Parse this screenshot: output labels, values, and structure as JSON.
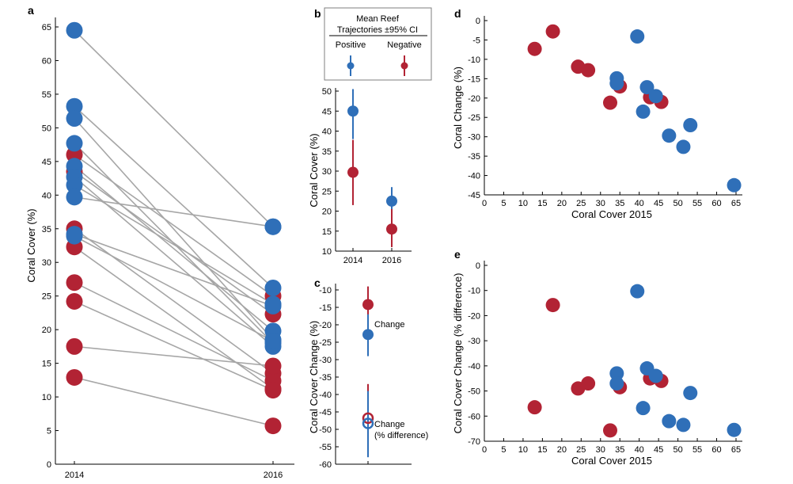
{
  "colors": {
    "positive": "#2f6fb8",
    "negative": "#b22334",
    "line": "#a6a6a6",
    "axis": "#000000"
  },
  "chart_data": [
    {
      "id": "a",
      "panel_label": "a",
      "type": "slope",
      "title": "",
      "xlabel": "",
      "ylabel": "Coral Cover (%)",
      "categories": [
        "2014",
        "2016"
      ],
      "ylim": [
        0,
        65
      ],
      "yticks": [
        0,
        5,
        10,
        15,
        20,
        25,
        30,
        35,
        40,
        45,
        50,
        55,
        60,
        65
      ],
      "pairs": [
        {
          "group": "positive",
          "y2014": 64.5,
          "y2016": 35.3
        },
        {
          "group": "positive",
          "y2014": 53.2,
          "y2016": 26.2
        },
        {
          "group": "positive",
          "y2014": 51.4,
          "y2016": 18.5
        },
        {
          "group": "positive",
          "y2014": 47.7,
          "y2016": 18.0
        },
        {
          "group": "negative",
          "y2014": 46.0,
          "y2016": 25.0
        },
        {
          "group": "positive",
          "y2014": 44.3,
          "y2016": 19.8
        },
        {
          "group": "negative",
          "y2014": 43.5,
          "y2016": 22.3
        },
        {
          "group": "positive",
          "y2014": 42.7,
          "y2016": 17.5
        },
        {
          "group": "positive",
          "y2014": 41.5,
          "y2016": 23.8
        },
        {
          "group": "positive",
          "y2014": 39.7,
          "y2016": 35.3
        },
        {
          "group": "negative",
          "y2014": 35.0,
          "y2016": 13.5
        },
        {
          "group": "positive",
          "y2014": 34.2,
          "y2016": 23.5
        },
        {
          "group": "positive",
          "y2014": 33.9,
          "y2016": 18.3
        },
        {
          "group": "negative",
          "y2014": 32.3,
          "y2016": 11.2
        },
        {
          "group": "negative",
          "y2014": 27.0,
          "y2016": 12.4
        },
        {
          "group": "negative",
          "y2014": 24.2,
          "y2016": 11.0
        },
        {
          "group": "negative",
          "y2014": 17.5,
          "y2016": 14.6
        },
        {
          "group": "negative",
          "y2014": 12.9,
          "y2016": 5.7
        }
      ]
    },
    {
      "id": "legend",
      "panel_label": "b",
      "type": "legend",
      "title_line1": "Mean Reef",
      "title_line2": "Trajectories ±95% CI",
      "entries": [
        {
          "group": "positive",
          "label": "Positive"
        },
        {
          "group": "negative",
          "label": "Negative"
        }
      ]
    },
    {
      "id": "b",
      "type": "errorbar",
      "xlabel": "",
      "ylabel": "Coral Cover  (%)",
      "categories": [
        "2014",
        "2016"
      ],
      "ylim": [
        10,
        50
      ],
      "yticks": [
        10,
        15,
        20,
        25,
        30,
        35,
        40,
        45,
        50
      ],
      "series": [
        {
          "group": "positive",
          "mean": [
            45.0,
            22.5
          ],
          "lower": [
            38.0,
            18.5
          ],
          "upper": [
            50.5,
            26.0
          ]
        },
        {
          "group": "negative",
          "mean": [
            29.7,
            15.5
          ],
          "lower": [
            21.5,
            11.0
          ],
          "upper": [
            37.8,
            20.5
          ]
        }
      ]
    },
    {
      "id": "c",
      "panel_label": "c",
      "type": "errorbar",
      "xlabel": "",
      "ylabel": "Coral Cover Change (%)",
      "ylim": [
        -60,
        -10
      ],
      "yticks": [
        -60,
        -55,
        -50,
        -45,
        -40,
        -35,
        -30,
        -25,
        -20,
        -15,
        -10
      ],
      "annotations": {
        "change": "Change",
        "pct_line1": "Change",
        "pct_line2": "(% difference)"
      },
      "points": [
        {
          "group": "negative",
          "label": "Change",
          "filled": true,
          "mean": -14.2,
          "lower": -19.5,
          "upper": -9.0
        },
        {
          "group": "positive",
          "label": "Change",
          "filled": true,
          "mean": -22.8,
          "lower": -29.0,
          "upper": -17.0
        },
        {
          "group": "negative",
          "label": "Change (% difference)",
          "filled": false,
          "mean": -46.8,
          "lower": -56.5,
          "upper": -37.0
        },
        {
          "group": "positive",
          "label": "Change (% difference)",
          "filled": false,
          "mean": -48.3,
          "lower": -58.0,
          "upper": -39.0
        }
      ]
    },
    {
      "id": "d",
      "panel_label": "d",
      "type": "scatter",
      "xlabel": "Coral Cover 2015",
      "ylabel": "Coral Change (%)",
      "xlim": [
        0,
        65
      ],
      "ylim": [
        -45,
        0
      ],
      "xticks": [
        0,
        5,
        10,
        15,
        20,
        25,
        30,
        35,
        40,
        45,
        50,
        55,
        60,
        65
      ],
      "yticks": [
        -45,
        -40,
        -35,
        -30,
        -25,
        -20,
        -15,
        -10,
        -5,
        0
      ],
      "points": [
        {
          "group": "negative",
          "x": 13.0,
          "y": -7.3
        },
        {
          "group": "negative",
          "x": 17.7,
          "y": -2.8
        },
        {
          "group": "negative",
          "x": 24.2,
          "y": -11.9
        },
        {
          "group": "negative",
          "x": 26.8,
          "y": -12.8
        },
        {
          "group": "negative",
          "x": 32.5,
          "y": -21.2
        },
        {
          "group": "negative",
          "x": 35.0,
          "y": -17.0
        },
        {
          "group": "negative",
          "x": 42.8,
          "y": -19.8
        },
        {
          "group": "negative",
          "x": 45.7,
          "y": -21.0
        },
        {
          "group": "positive",
          "x": 34.2,
          "y": -14.9
        },
        {
          "group": "positive",
          "x": 34.2,
          "y": -16.2
        },
        {
          "group": "positive",
          "x": 39.5,
          "y": -4.1
        },
        {
          "group": "positive",
          "x": 41.0,
          "y": -23.5
        },
        {
          "group": "positive",
          "x": 42.0,
          "y": -17.2
        },
        {
          "group": "positive",
          "x": 44.3,
          "y": -19.5
        },
        {
          "group": "positive",
          "x": 47.7,
          "y": -29.7
        },
        {
          "group": "positive",
          "x": 51.4,
          "y": -32.6
        },
        {
          "group": "positive",
          "x": 53.2,
          "y": -27.0
        },
        {
          "group": "positive",
          "x": 64.5,
          "y": -42.5
        }
      ]
    },
    {
      "id": "e",
      "panel_label": "e",
      "type": "scatter",
      "xlabel": "Coral Cover 2015",
      "ylabel": "Coral Cover Change (% difference)",
      "xlim": [
        0,
        65
      ],
      "ylim": [
        -70,
        0
      ],
      "xticks": [
        0,
        5,
        10,
        15,
        20,
        25,
        30,
        35,
        40,
        45,
        50,
        55,
        60,
        65
      ],
      "yticks": [
        -70,
        -60,
        -50,
        -40,
        -30,
        -20,
        -10,
        0
      ],
      "points": [
        {
          "group": "negative",
          "x": 13.0,
          "y": -56.5
        },
        {
          "group": "negative",
          "x": 17.7,
          "y": -15.8
        },
        {
          "group": "negative",
          "x": 24.2,
          "y": -49.0
        },
        {
          "group": "negative",
          "x": 26.8,
          "y": -47.0
        },
        {
          "group": "negative",
          "x": 32.5,
          "y": -65.7
        },
        {
          "group": "negative",
          "x": 35.0,
          "y": -48.5
        },
        {
          "group": "negative",
          "x": 42.8,
          "y": -45.0
        },
        {
          "group": "negative",
          "x": 45.7,
          "y": -46.0
        },
        {
          "group": "positive",
          "x": 34.2,
          "y": -43.0
        },
        {
          "group": "positive",
          "x": 34.2,
          "y": -47.0
        },
        {
          "group": "positive",
          "x": 39.5,
          "y": -10.3
        },
        {
          "group": "positive",
          "x": 41.0,
          "y": -56.8
        },
        {
          "group": "positive",
          "x": 42.0,
          "y": -41.0
        },
        {
          "group": "positive",
          "x": 44.3,
          "y": -44.0
        },
        {
          "group": "positive",
          "x": 47.7,
          "y": -62.0
        },
        {
          "group": "positive",
          "x": 51.4,
          "y": -63.5
        },
        {
          "group": "positive",
          "x": 53.2,
          "y": -50.8
        },
        {
          "group": "positive",
          "x": 64.5,
          "y": -65.5
        }
      ]
    }
  ]
}
